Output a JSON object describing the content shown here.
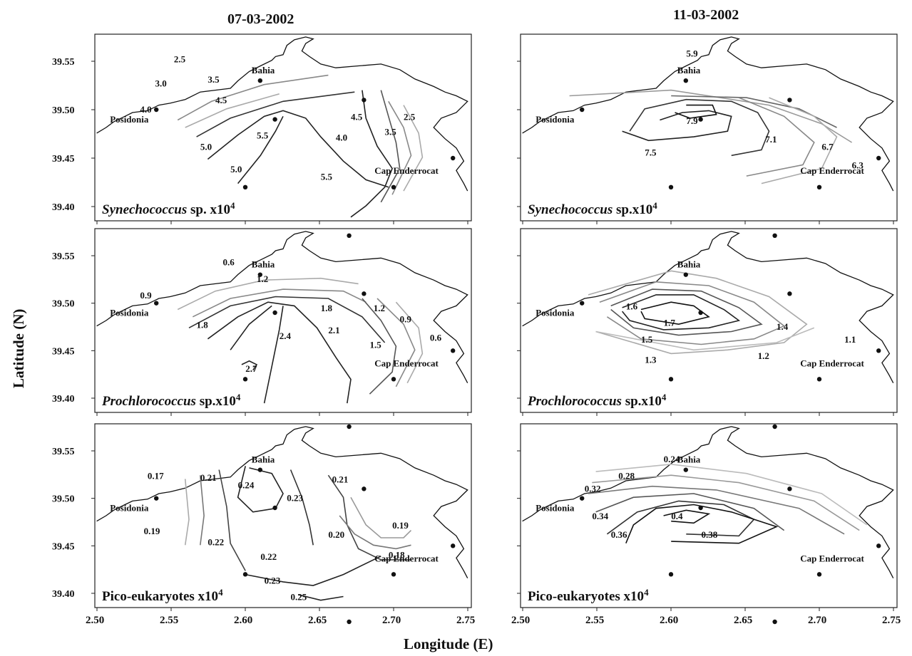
{
  "figure": {
    "column_titles": [
      "07-03-2002",
      "11-03-2002"
    ],
    "y_axis_label": "Latitude (N)",
    "x_axis_label": "Longitude (E)",
    "x_ticks": [
      "2.50",
      "2.55",
      "2.60",
      "2.65",
      "2.70",
      "2.75"
    ],
    "y_ticks": [
      "39.55",
      "39.50",
      "39.45",
      "39.40"
    ]
  },
  "chart_data": {
    "type": "contour",
    "x_range": [
      2.5,
      2.75
    ],
    "y_range": [
      39.37,
      39.57
    ],
    "places": [
      {
        "name": "Bahia",
        "lon": 2.61,
        "lat": 39.53
      },
      {
        "name": "Posidonia",
        "lon": 2.54,
        "lat": 39.5
      },
      {
        "name": "Cap Enderrocat",
        "lon": 2.74,
        "lat": 39.45
      }
    ],
    "stations": [
      {
        "lon": 2.61,
        "lat": 39.53
      },
      {
        "lon": 2.54,
        "lat": 39.5
      },
      {
        "lon": 2.62,
        "lat": 39.49
      },
      {
        "lon": 2.68,
        "lat": 39.51
      },
      {
        "lon": 2.74,
        "lat": 39.45
      },
      {
        "lon": 2.6,
        "lat": 39.42
      },
      {
        "lon": 2.7,
        "lat": 39.42
      },
      {
        "lon": 2.67,
        "lat": 39.37
      }
    ],
    "panels": [
      {
        "date": "07-03-2002",
        "organism": "Synechococcus",
        "suffix": " sp. x10",
        "exp": "4",
        "contour_labels": [
          "2.5",
          "3.0",
          "3.5",
          "4.0",
          "4.5",
          "5.5",
          "5.0",
          "4.5",
          "3.5",
          "2.5",
          "5.0",
          "4.0",
          "5.5"
        ]
      },
      {
        "date": "11-03-2002",
        "organism": "Synechococcus",
        "suffix": " sp.x10",
        "exp": "4",
        "contour_labels": [
          "5.9",
          "7.9",
          "7.5",
          "7.1",
          "6.7",
          "6.3"
        ]
      },
      {
        "date": "07-03-2002",
        "organism": "Prochlorococcus",
        "suffix": " sp.x10",
        "exp": "4",
        "contour_labels": [
          "0.6",
          "1.2",
          "0.9",
          "1.2",
          "1.8",
          "1.8",
          "0.9",
          "2.4",
          "2.1",
          "1.5",
          "0.6",
          "2.7"
        ]
      },
      {
        "date": "11-03-2002",
        "organism": "Prochlorococcus",
        "suffix": " sp.x10",
        "exp": "4",
        "contour_labels": [
          "1.6",
          "1.7",
          "1.5",
          "1.4",
          "1.1",
          "1.3",
          "1.2"
        ]
      },
      {
        "date": "07-03-2002",
        "organism": "",
        "suffix": "Pico-eukaryotes x10",
        "exp": "4",
        "contour_labels": [
          "0.17",
          "0.21",
          "0.24",
          "0.23",
          "0.21",
          "0.19",
          "0.22",
          "0.20",
          "0.19",
          "0.22",
          "0.18",
          "0.23",
          "0.25"
        ]
      },
      {
        "date": "11-03-2002",
        "organism": "",
        "suffix": "Pico-eukaryotes x10",
        "exp": "4",
        "contour_labels": [
          "0.24",
          "0.28",
          "0.32",
          "0.34",
          "0.4",
          "0.36",
          "0.38"
        ]
      }
    ]
  }
}
